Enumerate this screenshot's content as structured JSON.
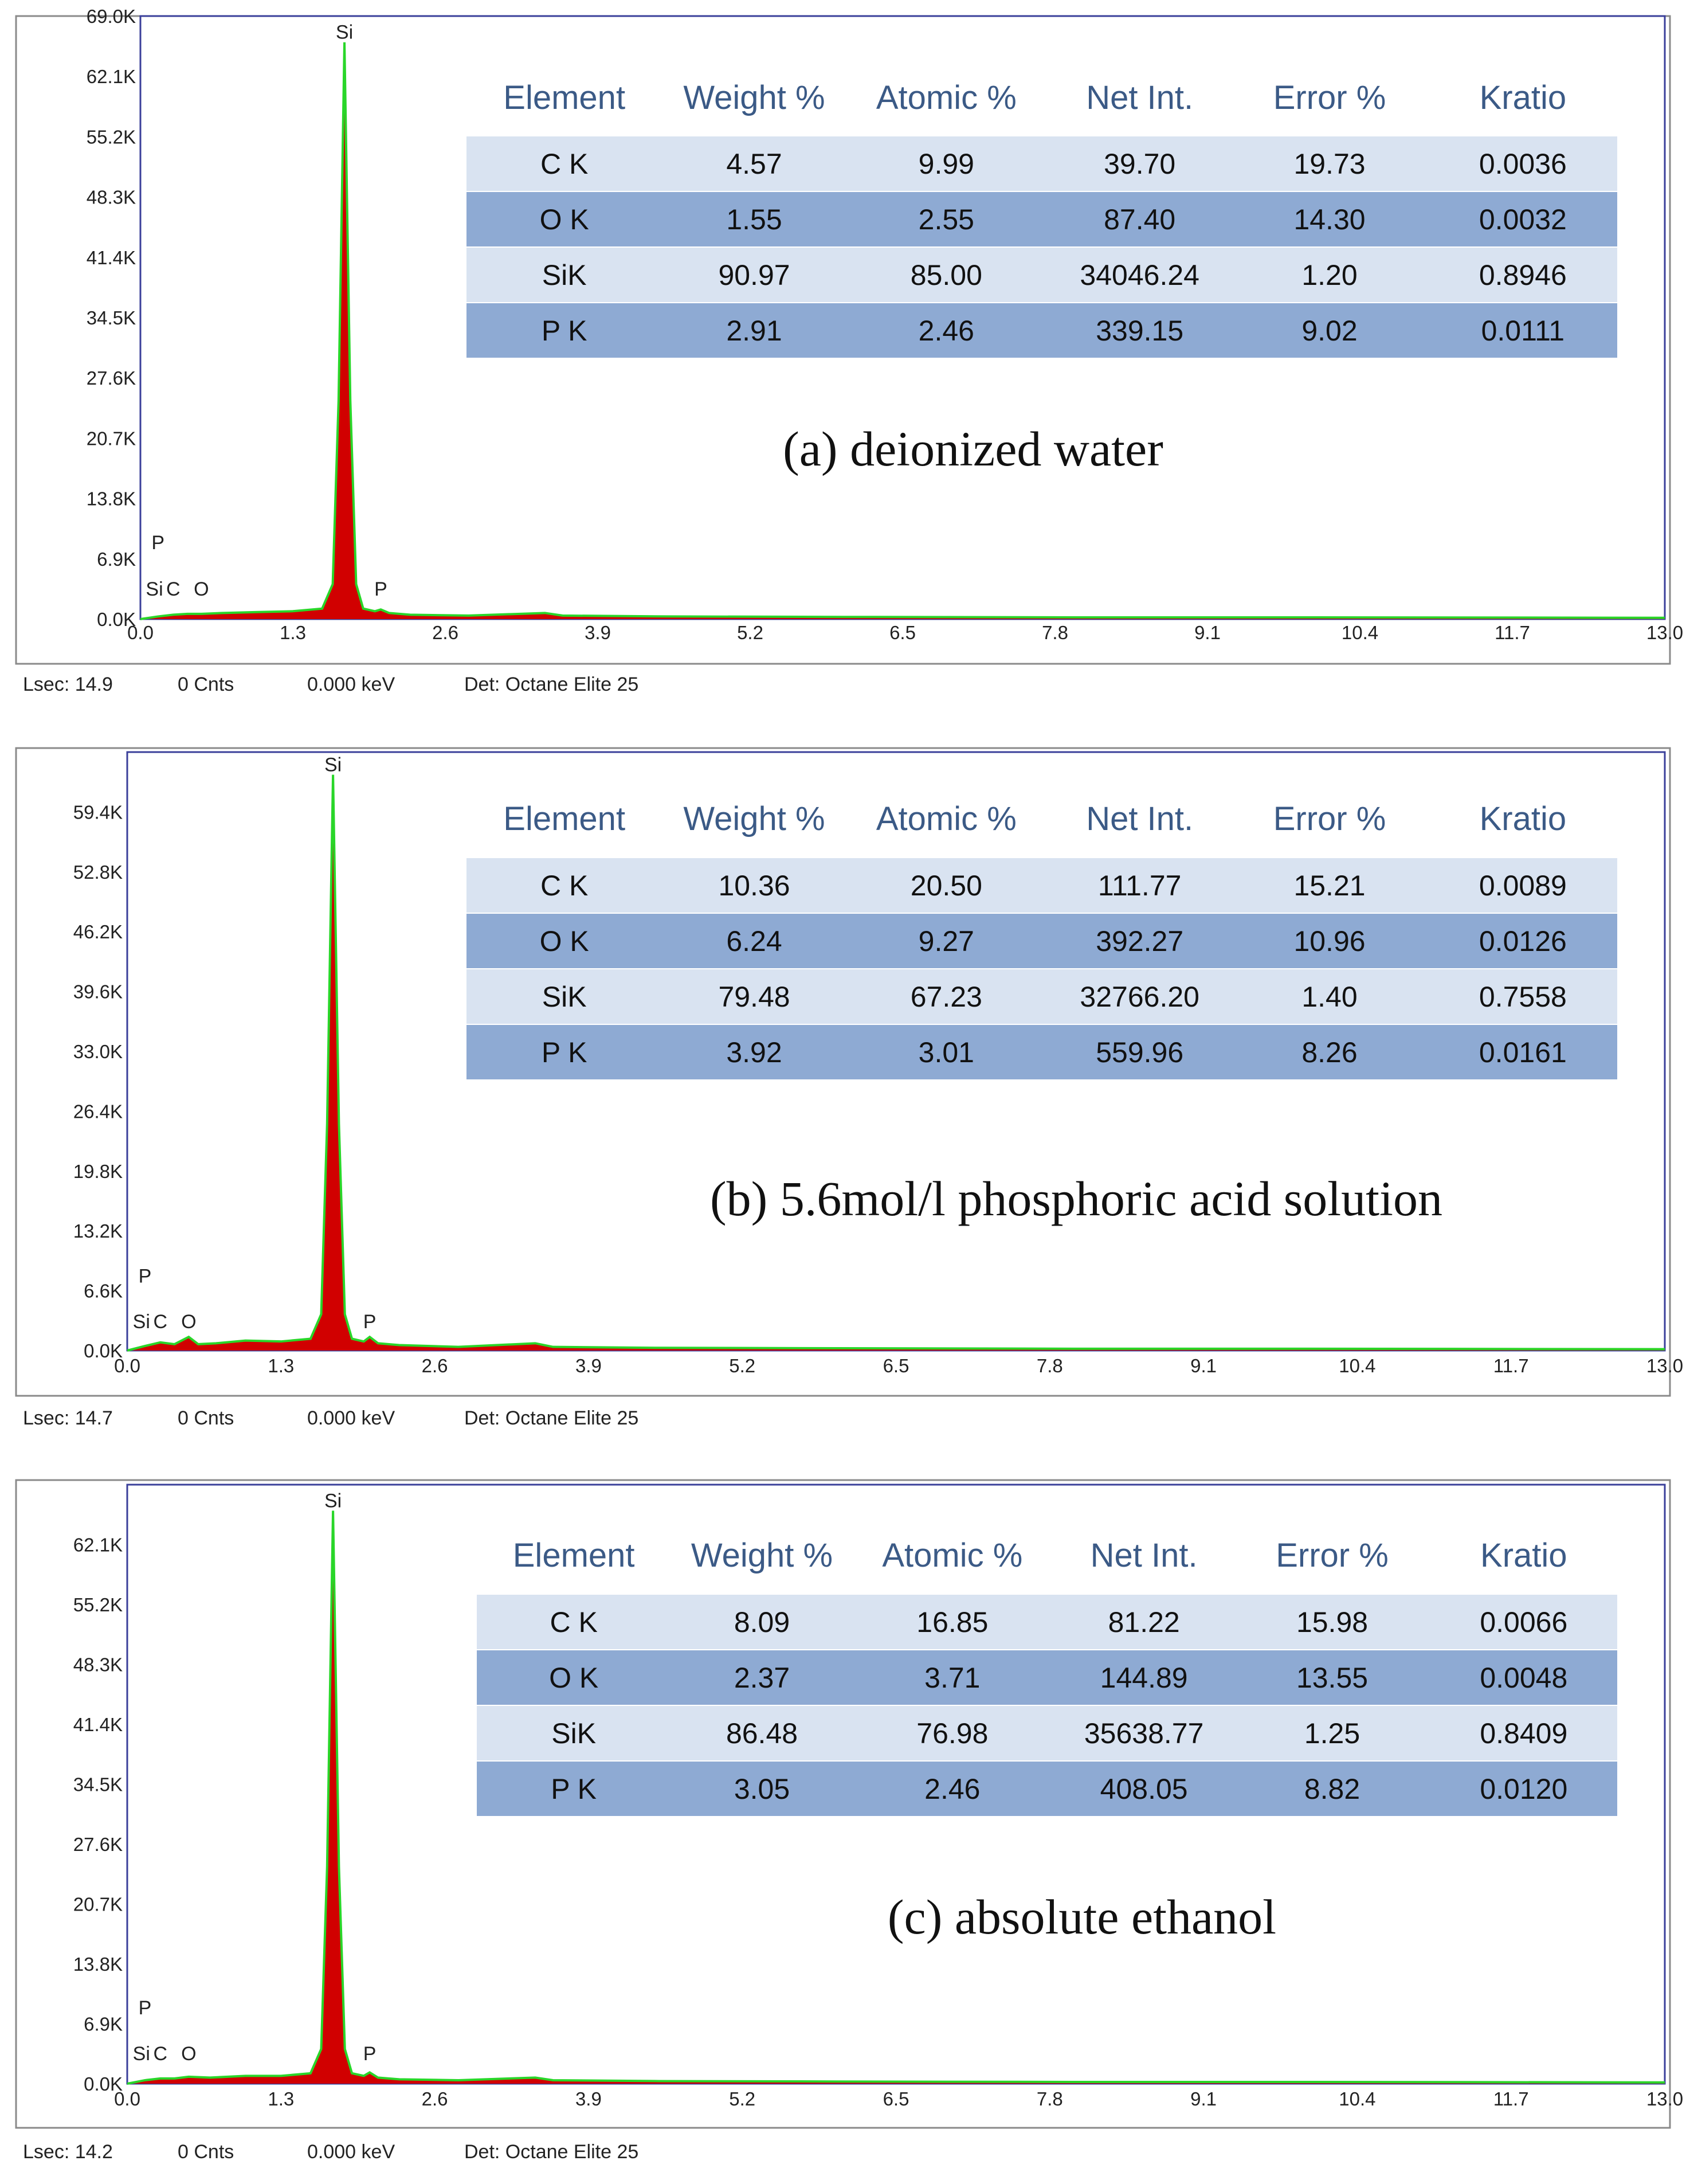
{
  "colors": {
    "frame": "#8a8a8a",
    "plot_border": "#3a3f9a",
    "peak_fill": "#d10000",
    "spectrum_line": "#29d629",
    "table_header_text": "#3b5a86",
    "row_light": "#d9e3f1",
    "row_dark": "#8eaad3",
    "axis_text": "#222222"
  },
  "panels": [
    {
      "caption": "(a) deionized water",
      "footer": {
        "lsec": "Lsec: 14.9",
        "cnts": "0 Cnts",
        "kev": "0.000 keV",
        "det": "Det: Octane Elite 25"
      },
      "table": {
        "headers": [
          "Element",
          "Weight %",
          "Atomic %",
          "Net Int.",
          "Error %",
          "Kratio"
        ],
        "rows": [
          [
            "C K",
            "4.57",
            "9.99",
            "39.70",
            "19.73",
            "0.0036"
          ],
          [
            "O K",
            "1.55",
            "2.55",
            "87.40",
            "14.30",
            "0.0032"
          ],
          [
            "SiK",
            "90.97",
            "85.00",
            "34046.24",
            "1.20",
            "0.8946"
          ],
          [
            "P K",
            "2.91",
            "2.46",
            "339.15",
            "9.02",
            "0.0111"
          ]
        ]
      }
    },
    {
      "caption": "(b) 5.6mol/l phosphoric acid solution",
      "footer": {
        "lsec": "Lsec: 14.7",
        "cnts": "0 Cnts",
        "kev": "0.000 keV",
        "det": "Det: Octane Elite 25"
      },
      "table": {
        "headers": [
          "Element",
          "Weight %",
          "Atomic %",
          "Net Int.",
          "Error %",
          "Kratio"
        ],
        "rows": [
          [
            "C K",
            "10.36",
            "20.50",
            "111.77",
            "15.21",
            "0.0089"
          ],
          [
            "O K",
            "6.24",
            "9.27",
            "392.27",
            "10.96",
            "0.0126"
          ],
          [
            "SiK",
            "79.48",
            "67.23",
            "32766.20",
            "1.40",
            "0.7558"
          ],
          [
            "P K",
            "3.92",
            "3.01",
            "559.96",
            "8.26",
            "0.0161"
          ]
        ]
      }
    },
    {
      "caption": "(c) absolute ethanol",
      "footer": {
        "lsec": "Lsec: 14.2",
        "cnts": "0 Cnts",
        "kev": "0.000 keV",
        "det": "Det: Octane Elite 25"
      },
      "table": {
        "headers": [
          "Element",
          "Weight %",
          "Atomic %",
          "Net Int.",
          "Error %",
          "Kratio"
        ],
        "rows": [
          [
            "C K",
            "8.09",
            "16.85",
            "81.22",
            "15.98",
            "0.0066"
          ],
          [
            "O K",
            "2.37",
            "3.71",
            "144.89",
            "13.55",
            "0.0048"
          ],
          [
            "SiK",
            "86.48",
            "76.98",
            "35638.77",
            "1.25",
            "0.8409"
          ],
          [
            "P K",
            "3.05",
            "2.46",
            "408.05",
            "8.82",
            "0.0120"
          ]
        ]
      }
    }
  ],
  "chart_data": [
    {
      "type": "line",
      "title": "(a) deionized water",
      "xlabel": "",
      "ylabel": "",
      "x_ticks": [
        "0.0",
        "1.3",
        "2.6",
        "3.9",
        "5.2",
        "6.5",
        "7.8",
        "9.1",
        "10.4",
        "11.7",
        "13.0"
      ],
      "y_ticks": [
        "0.0K",
        "6.9K",
        "13.8K",
        "20.7K",
        "27.6K",
        "34.5K",
        "41.4K",
        "48.3K",
        "55.2K",
        "62.1K",
        "69.0K"
      ],
      "xlim": [
        0,
        13.0
      ],
      "ylim": [
        0,
        69000
      ],
      "series": [
        {
          "x": [
            0.0,
            0.15,
            0.28,
            0.4,
            0.52,
            0.7,
            1.0,
            1.3,
            1.55,
            1.64,
            1.69,
            1.74,
            1.79,
            1.84,
            1.9,
            2.0,
            2.05,
            2.12,
            2.3,
            2.8,
            3.45,
            3.6,
            4.5,
            6.0,
            8.0,
            10.0,
            13.0
          ],
          "y": [
            0,
            300,
            500,
            600,
            600,
            700,
            800,
            900,
            1200,
            4000,
            25000,
            66000,
            25000,
            4000,
            1200,
            900,
            1100,
            700,
            500,
            400,
            700,
            400,
            300,
            250,
            200,
            200,
            150
          ]
        }
      ],
      "peak_labels": [
        {
          "text": "Si",
          "x": 1.74,
          "y": 66000
        },
        {
          "text": "P",
          "x": 0.15,
          "y": 7600
        },
        {
          "text": "Si",
          "x": 0.12,
          "y": 2300
        },
        {
          "text": "C",
          "x": 0.28,
          "y": 2300
        },
        {
          "text": "O",
          "x": 0.52,
          "y": 2300
        },
        {
          "text": "P",
          "x": 2.05,
          "y": 2300
        }
      ]
    },
    {
      "type": "line",
      "title": "(b) 5.6mol/l phosphoric acid solution",
      "xlabel": "",
      "ylabel": "",
      "x_ticks": [
        "0.0",
        "1.3",
        "2.6",
        "3.9",
        "5.2",
        "6.5",
        "7.8",
        "9.1",
        "10.4",
        "11.7",
        "13.0"
      ],
      "y_ticks": [
        "0.0K",
        "6.6K",
        "13.2K",
        "19.8K",
        "26.4K",
        "33.0K",
        "39.6K",
        "46.2K",
        "52.8K",
        "59.4K"
      ],
      "xlim": [
        0,
        13.0
      ],
      "ylim": [
        0,
        66000
      ],
      "series": [
        {
          "x": [
            0.0,
            0.15,
            0.28,
            0.4,
            0.52,
            0.6,
            0.75,
            1.0,
            1.3,
            1.55,
            1.64,
            1.69,
            1.74,
            1.79,
            1.84,
            1.9,
            2.0,
            2.05,
            2.12,
            2.3,
            2.8,
            3.45,
            3.6,
            4.5,
            6.0,
            8.0,
            10.0,
            13.0
          ],
          "y": [
            0,
            500,
            900,
            700,
            1500,
            700,
            800,
            1100,
            1000,
            1300,
            4000,
            25000,
            63500,
            25000,
            4000,
            1300,
            1000,
            1500,
            800,
            600,
            400,
            800,
            400,
            300,
            250,
            200,
            200,
            150
          ]
        }
      ],
      "peak_labels": [
        {
          "text": "Si",
          "x": 1.74,
          "y": 63500
        },
        {
          "text": "P",
          "x": 0.15,
          "y": 7100
        },
        {
          "text": "Si",
          "x": 0.12,
          "y": 2100
        },
        {
          "text": "C",
          "x": 0.28,
          "y": 2100
        },
        {
          "text": "O",
          "x": 0.52,
          "y": 2100
        },
        {
          "text": "P",
          "x": 2.05,
          "y": 2100
        }
      ]
    },
    {
      "type": "line",
      "title": "(c) absolute ethanol",
      "xlabel": "",
      "ylabel": "",
      "x_ticks": [
        "0.0",
        "1.3",
        "2.6",
        "3.9",
        "5.2",
        "6.5",
        "7.8",
        "9.1",
        "10.4",
        "11.7",
        "13.0"
      ],
      "y_ticks": [
        "0.0K",
        "6.9K",
        "13.8K",
        "20.7K",
        "27.6K",
        "34.5K",
        "41.4K",
        "48.3K",
        "55.2K",
        "62.1K"
      ],
      "xlim": [
        0,
        13.0
      ],
      "ylim": [
        0,
        69000
      ],
      "series": [
        {
          "x": [
            0.0,
            0.15,
            0.28,
            0.4,
            0.52,
            0.7,
            1.0,
            1.3,
            1.55,
            1.64,
            1.69,
            1.74,
            1.79,
            1.84,
            1.9,
            2.0,
            2.05,
            2.12,
            2.3,
            2.8,
            3.45,
            3.6,
            4.5,
            6.0,
            8.0,
            10.0,
            13.0
          ],
          "y": [
            0,
            400,
            600,
            600,
            800,
            700,
            900,
            900,
            1200,
            4000,
            25000,
            66000,
            25000,
            4000,
            1200,
            900,
            1300,
            700,
            500,
            400,
            700,
            400,
            300,
            250,
            200,
            200,
            150
          ]
        }
      ],
      "peak_labels": [
        {
          "text": "Si",
          "x": 1.74,
          "y": 66000
        },
        {
          "text": "P",
          "x": 0.15,
          "y": 7600
        },
        {
          "text": "Si",
          "x": 0.12,
          "y": 2300
        },
        {
          "text": "C",
          "x": 0.28,
          "y": 2300
        },
        {
          "text": "O",
          "x": 0.52,
          "y": 2300
        },
        {
          "text": "P",
          "x": 2.05,
          "y": 2300
        }
      ]
    }
  ]
}
